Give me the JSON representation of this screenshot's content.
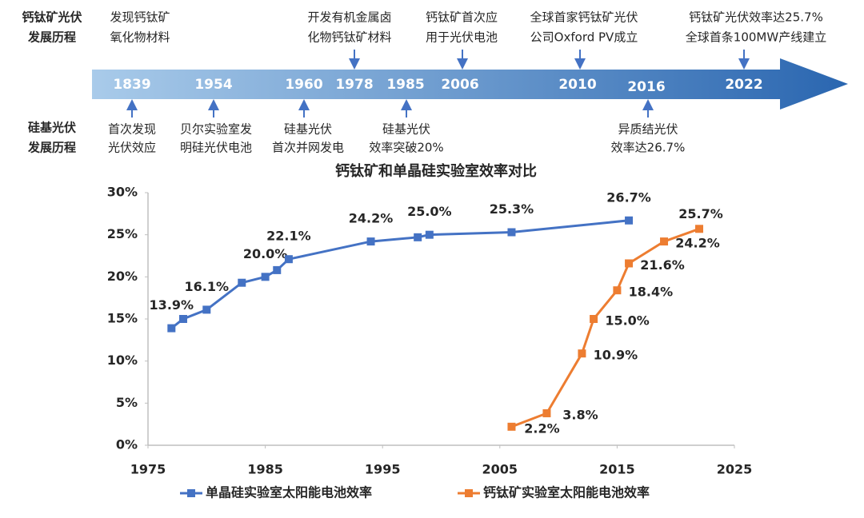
{
  "timeline": {
    "perovskite_heading": [
      "钙钛矿光伏",
      "发展历程"
    ],
    "silicon_heading": [
      "硅基光伏",
      "发展历程"
    ],
    "years": [
      "1839",
      "1954",
      "1960",
      "1978",
      "1985",
      "2006",
      "2010",
      "2016",
      "2022"
    ],
    "perovskite_events": [
      {
        "lines": [
          "发现钙钛矿",
          "氧化物材料"
        ]
      },
      {
        "lines": [
          "开发有机金属卤",
          "化物钙钛矿材料"
        ]
      },
      {
        "lines": [
          "钙钛矿首次应",
          "用于光伏电池"
        ]
      },
      {
        "lines": [
          "全球首家钙钛矿光伏",
          "公司Oxford PV成立"
        ]
      },
      {
        "lines": [
          "钙钛矿光伏效率达25.7%",
          "全球首条100MW产线建立"
        ]
      }
    ],
    "silicon_events": [
      {
        "lines": [
          "首次发现",
          "光伏效应"
        ]
      },
      {
        "lines": [
          "贝尔实验室发",
          "明硅光伏电池"
        ]
      },
      {
        "lines": [
          "硅基光伏",
          "首次并网发电"
        ]
      },
      {
        "lines": [
          "硅基光伏",
          "效率突破20%"
        ]
      },
      {
        "lines": [
          "异质结光伏",
          "效率达26.7%"
        ]
      }
    ]
  },
  "chart_data": {
    "type": "line",
    "title": "钙钛矿和单晶硅实验室效率对比",
    "xlim": [
      1975,
      2025
    ],
    "xticks": [
      1975,
      1985,
      1995,
      2005,
      2015,
      2025
    ],
    "ylim": [
      0,
      30
    ],
    "yticks": [
      {
        "value": 0,
        "label": "0%"
      },
      {
        "value": 5,
        "label": "5%"
      },
      {
        "value": 10,
        "label": "10%"
      },
      {
        "value": 15,
        "label": "15%"
      },
      {
        "value": 20,
        "label": "20%"
      },
      {
        "value": 25,
        "label": "25%"
      },
      {
        "value": 30,
        "label": "30%"
      }
    ],
    "grid": false,
    "legend": "bottom",
    "series": [
      {
        "name": "单晶硅实验室太阳能电池效率",
        "color": "#4472c4",
        "x": [
          1977,
          1978,
          1980,
          1983,
          1985,
          1986,
          1987,
          1994,
          1998,
          1999,
          2006,
          2016
        ],
        "values": [
          13.9,
          15.0,
          16.1,
          19.3,
          20.0,
          20.8,
          22.1,
          24.2,
          24.7,
          25.0,
          25.3,
          26.7
        ],
        "value_labels": [
          "13.9%",
          null,
          "16.1%",
          null,
          "20.0%",
          null,
          "22.1%",
          "24.2%",
          null,
          "25.0%",
          "25.3%",
          "26.7%"
        ]
      },
      {
        "name": "钙钛矿实验室太阳能电池效率",
        "color": "#ed7d31",
        "x": [
          2006,
          2009,
          2012,
          2013,
          2015,
          2016,
          2019,
          2022
        ],
        "values": [
          2.2,
          3.8,
          10.9,
          15.0,
          18.4,
          21.6,
          24.2,
          25.7
        ],
        "value_labels": [
          "2.2%",
          "3.8%",
          "10.9%",
          "15.0%",
          "18.4%",
          "21.6%",
          "24.2%",
          "25.7%"
        ]
      }
    ]
  }
}
